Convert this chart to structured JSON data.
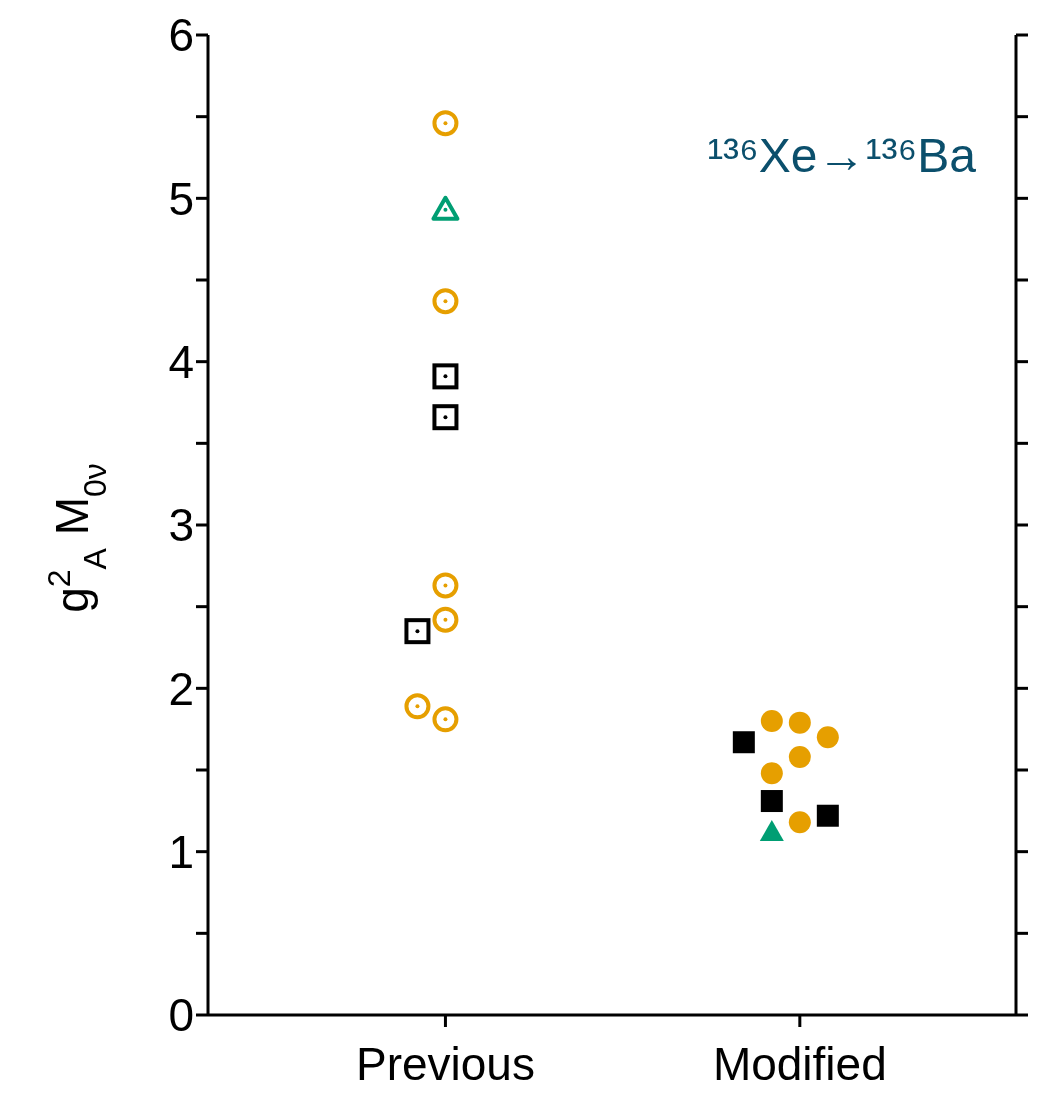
{
  "chart_data": {
    "type": "scatter",
    "ylabel": "g$^{2}$$_{A}$ M$_{0ν}$",
    "annotations": [
      "¹³⁶Xe→¹³⁶Ba"
    ],
    "categories": [
      "Previous",
      "Modified"
    ],
    "ylim": [
      0,
      6
    ],
    "yticks": [
      0,
      {
        "value": 0.5,
        "label": null
      },
      1,
      {
        "value": 1.5,
        "label": null
      },
      2,
      {
        "value": 2.5,
        "label": null
      },
      3,
      {
        "value": 3.5,
        "label": null
      },
      4,
      {
        "value": 4.5,
        "label": null
      },
      5,
      {
        "value": 5.5,
        "label": null
      },
      6
    ],
    "grid": false,
    "legend": false,
    "series": [
      {
        "color": "#e69f00",
        "marker": "circle",
        "x": [
          "Previous",
          "Previous",
          "Previous",
          "Previous",
          "Previous",
          "Previous"
        ],
        "values": [
          5.46,
          4.37,
          2.63,
          2.42,
          1.81,
          1.89
        ]
      },
      {
        "color": "#009e73",
        "marker": "triangle",
        "x": [
          "Previous"
        ],
        "values": [
          4.93
        ]
      },
      {
        "color": "#000000",
        "marker": "square",
        "x": [
          "Previous",
          "Previous",
          "Previous"
        ],
        "values": [
          3.91,
          3.66,
          2.35
        ]
      },
      {
        "color": "#e69f00",
        "marker": "circle",
        "x": [
          "Modified",
          "Modified",
          "Modified",
          "Modified",
          "Modified",
          "Modified"
        ],
        "values": [
          1.79,
          1.8,
          1.7,
          1.58,
          1.48,
          1.18
        ]
      },
      {
        "color": "#000000",
        "marker": "square",
        "x": [
          "Modified",
          "Modified",
          "Modified"
        ],
        "values": [
          1.67,
          1.31,
          1.22
        ]
      },
      {
        "color": "#009e73",
        "marker": "triangle",
        "x": [
          "Modified"
        ],
        "values": [
          1.12
        ]
      }
    ]
  }
}
